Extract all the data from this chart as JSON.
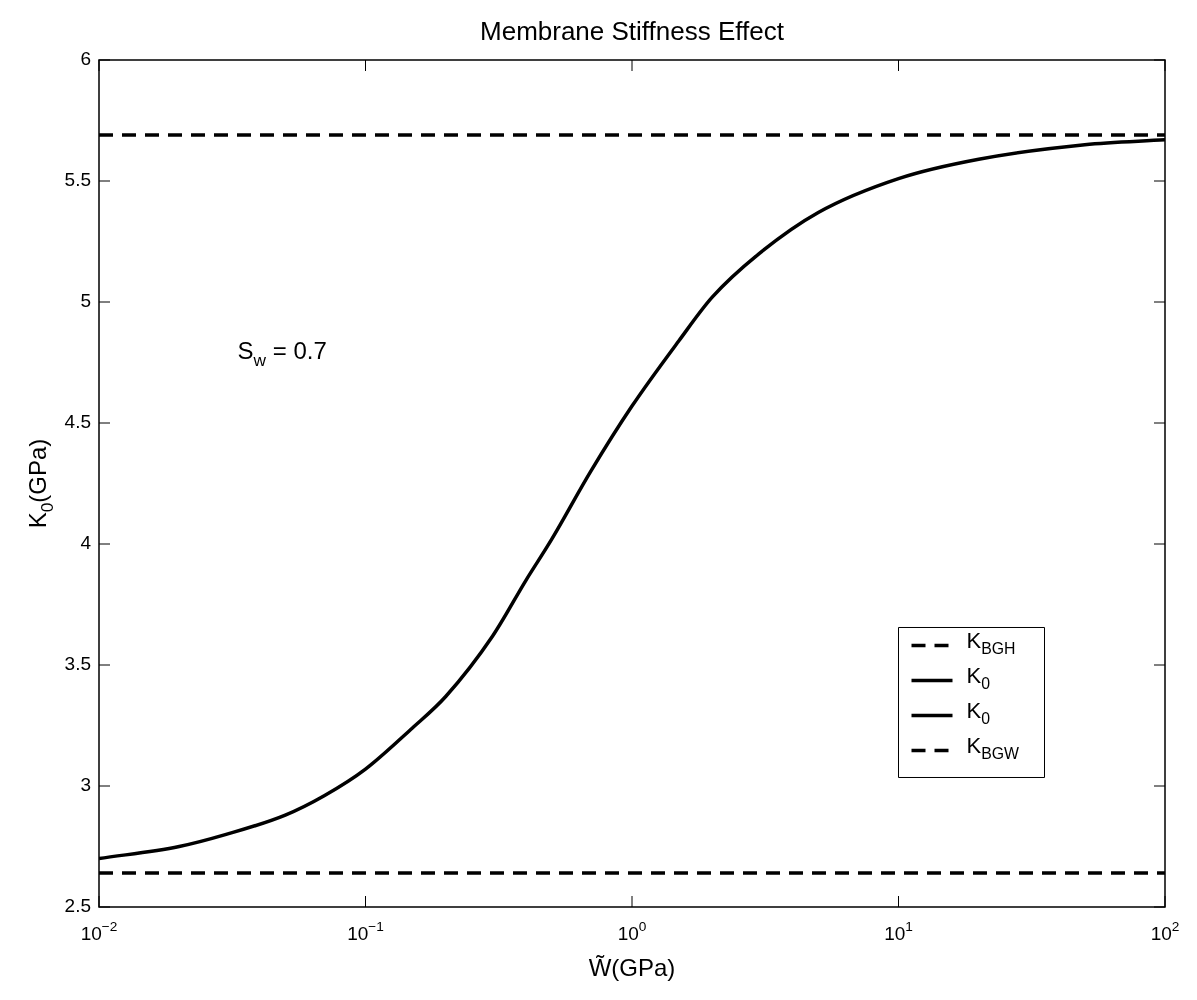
{
  "chart_data": {
    "type": "line",
    "title": "Membrane Stiffness Effect",
    "xlabel": "W̃(GPa)",
    "ylabel": "K$_{0}$(GPa)",
    "log": "x",
    "grid": false,
    "legend": "right",
    "marker": "none",
    "annotations": [
      "S$_{w}$ = 0.7"
    ],
    "xlim": [
      0.01,
      100
    ],
    "ylim": [
      2.5,
      6
    ],
    "xticks": [
      {
        "value": 0.01,
        "label": "10$^{−2}$"
      },
      {
        "value": 0.1,
        "label": "10$^{−1}$"
      },
      {
        "value": 1,
        "label": "10$^{0}$"
      },
      {
        "value": 10,
        "label": "10$^{1}$"
      },
      {
        "value": 100,
        "label": "10$^{2}$"
      }
    ],
    "yticks": [
      2.5,
      3,
      3.5,
      4,
      4.5,
      5,
      5.5,
      6
    ],
    "series": [
      {
        "name": "K$_{BGH}$",
        "color": "#000000",
        "line_style": "dashed",
        "x": [
          0.01,
          100
        ],
        "values": [
          5.69,
          5.69
        ]
      },
      {
        "name": "K$_{0}$",
        "color": "#000000",
        "line_style": "solid",
        "x": [
          0.01,
          0.02,
          0.03,
          0.05,
          0.07,
          0.1,
          0.15,
          0.2,
          0.3,
          0.4,
          0.5,
          0.7,
          1,
          1.5,
          2,
          3,
          5,
          10,
          20,
          50,
          100
        ],
        "values": [
          2.7,
          2.75,
          2.8,
          2.88,
          2.96,
          3.07,
          3.24,
          3.37,
          3.62,
          3.85,
          4.02,
          4.3,
          4.57,
          4.84,
          5.02,
          5.2,
          5.37,
          5.51,
          5.59,
          5.65,
          5.67
        ]
      },
      {
        "name": "K$_{0}$",
        "color": "#000000",
        "line_style": "solid"
      },
      {
        "name": "K$_{BGW}$",
        "color": "#000000",
        "line_style": "dashed",
        "x": [
          0.01,
          100
        ],
        "values": [
          2.64,
          2.64
        ]
      }
    ]
  }
}
